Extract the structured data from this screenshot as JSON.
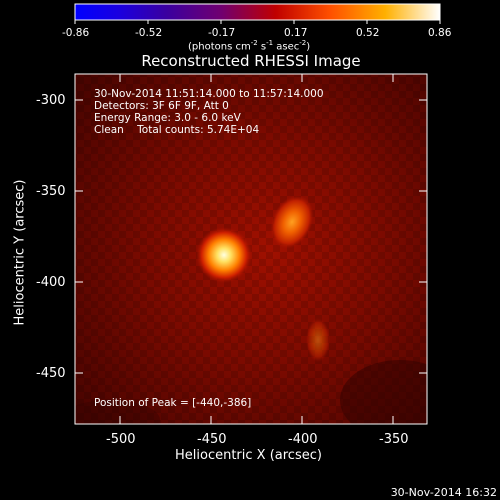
{
  "colorbar": {
    "ticks": [
      "-0.86",
      "-0.52",
      "-0.17",
      "0.17",
      "0.52",
      "0.86"
    ],
    "unit_label": "(photons cm",
    "unit_exp1": "-2",
    "unit_mid": " s",
    "unit_exp2": "-1",
    "unit_mid2": " asec",
    "unit_exp3": "-2",
    "unit_end": ")"
  },
  "title": "Reconstructed RHESSI Image",
  "info": {
    "time_range": "30-Nov-2014 11:51:14.000 to 11:57:14.000",
    "detectors": "Detectors: 3F 6F 9F, Att 0",
    "energy": "Energy Range: 3.0 - 6.0 keV",
    "clean": "Clean    Total counts: 5.74E+04"
  },
  "peak_text": "Position of Peak = [-440,-386]",
  "x_axis": {
    "label": "Heliocentric X (arcsec)",
    "ticks": [
      "-500",
      "-450",
      "-400",
      "-350"
    ]
  },
  "y_axis": {
    "label": "Heliocentric Y (arcsec)",
    "ticks": [
      "-300",
      "-350",
      "-400",
      "-450"
    ]
  },
  "footer_timestamp": "30-Nov-2014 16:32"
}
